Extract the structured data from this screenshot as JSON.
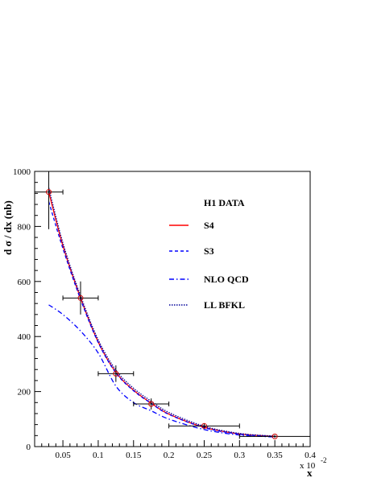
{
  "chart_data": {
    "type": "line",
    "title": "",
    "xlabel": "x",
    "x_exponent_label": "x 10",
    "x_exponent": "-2",
    "ylabel": "d σ / dx (nb)",
    "xlim": [
      0.01,
      0.4
    ],
    "ylim": [
      0,
      1000
    ],
    "x_ticks": [
      0.05,
      0.1,
      0.15,
      0.2,
      0.25,
      0.3,
      0.35,
      0.4
    ],
    "x_tick_labels": [
      "0.05",
      "0.1",
      "0.15",
      "0.2",
      "0.25",
      "0.3",
      "0.35",
      "0.4"
    ],
    "y_ticks": [
      0,
      200,
      400,
      600,
      800,
      1000
    ],
    "y_tick_labels": [
      "0",
      "200",
      "400",
      "600",
      "800",
      "1000"
    ],
    "grid": false,
    "legend_position": "top-right",
    "data_series": {
      "name": "H1 DATA",
      "points": [
        {
          "x": 0.03,
          "y": 925,
          "xerr": 0.02,
          "yerr_low": 135,
          "yerr_high": 75
        },
        {
          "x": 0.075,
          "y": 540,
          "xerr": 0.025,
          "yerr_low": 60,
          "yerr_high": 60
        },
        {
          "x": 0.125,
          "y": 265,
          "xerr": 0.025,
          "yerr_low": 30,
          "yerr_high": 30
        },
        {
          "x": 0.175,
          "y": 155,
          "xerr": 0.025,
          "yerr_low": 20,
          "yerr_high": 20
        },
        {
          "x": 0.25,
          "y": 75,
          "xerr": 0.05,
          "yerr_low": 10,
          "yerr_high": 10
        },
        {
          "x": 0.35,
          "y": 37,
          "xerr": 0.05,
          "yerr_low": 5,
          "yerr_high": 5
        }
      ]
    },
    "series": [
      {
        "name": "S4",
        "color": "#ff0000",
        "style": "solid",
        "x": [
          0.03,
          0.05,
          0.075,
          0.1,
          0.125,
          0.15,
          0.175,
          0.2,
          0.25,
          0.3,
          0.35
        ],
        "y": [
          925,
          730,
          540,
          380,
          270,
          205,
          158,
          118,
          70,
          46,
          37
        ]
      },
      {
        "name": "S3",
        "color": "#0000ff",
        "style": "dashed",
        "x": [
          0.03,
          0.05,
          0.075,
          0.1,
          0.125,
          0.15,
          0.175,
          0.2,
          0.25,
          0.3,
          0.35
        ],
        "y": [
          890,
          720,
          535,
          378,
          268,
          203,
          157,
          117,
          69,
          45,
          36
        ]
      },
      {
        "name": "NLO QCD",
        "color": "#0000ff",
        "style": "dashdot",
        "x": [
          0.03,
          0.05,
          0.075,
          0.1,
          0.125,
          0.15,
          0.175,
          0.2,
          0.25,
          0.3,
          0.35
        ],
        "y": [
          515,
          480,
          420,
          340,
          220,
          160,
          130,
          100,
          62,
          42,
          35
        ]
      },
      {
        "name": "LL BFKL",
        "color": "#000099",
        "style": "dotted",
        "x": [
          0.03,
          0.05,
          0.075,
          0.1,
          0.125,
          0.15,
          0.175,
          0.2,
          0.25,
          0.3,
          0.35
        ],
        "y": [
          940,
          740,
          548,
          388,
          278,
          212,
          165,
          124,
          74,
          48,
          38
        ]
      }
    ]
  }
}
